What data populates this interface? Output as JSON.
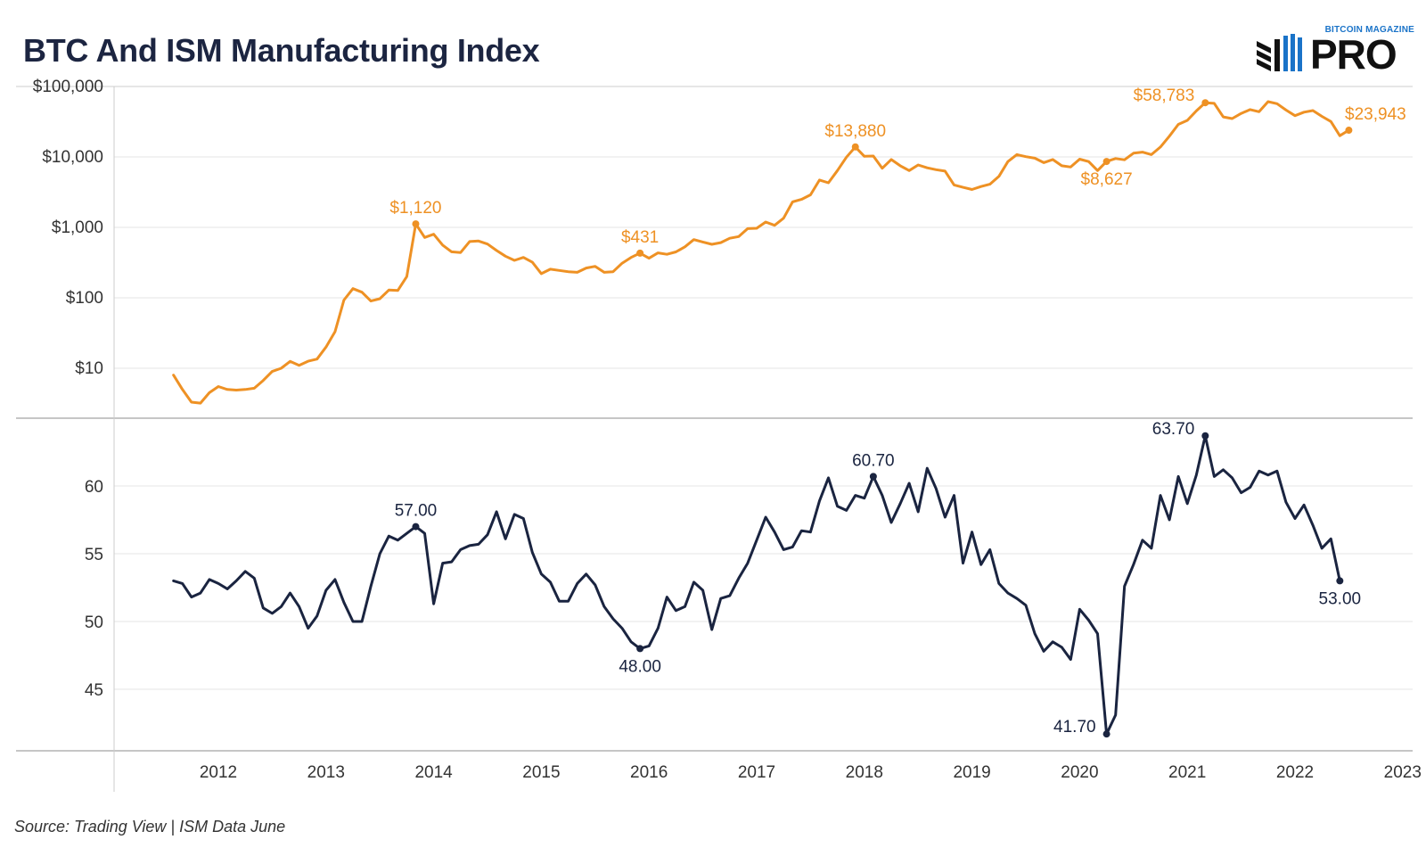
{
  "title": "BTC And ISM Manufacturing Index",
  "logo": {
    "top_text": "BITCOIN MAGAZINE",
    "main_text": "PRO"
  },
  "source": "Source: Trading View | ISM Data June",
  "colors": {
    "btc": "#ee9124",
    "ism": "#1a2440",
    "grid": "#e6e6e6",
    "axis": "#b3b3b3",
    "tick": "#333333"
  },
  "chart_data": [
    {
      "type": "line",
      "scale": "log",
      "series": [
        {
          "x": [
            "2011-08",
            "2011-09",
            "2011-10",
            "2011-11",
            "2011-12",
            "2012-01",
            "2012-02",
            "2012-03",
            "2012-04",
            "2012-05",
            "2012-06",
            "2012-07",
            "2012-08",
            "2012-09",
            "2012-10",
            "2012-11",
            "2012-12",
            "2013-01",
            "2013-02",
            "2013-03",
            "2013-04",
            "2013-05",
            "2013-06",
            "2013-07",
            "2013-08",
            "2013-09",
            "2013-10",
            "2013-11",
            "2013-12",
            "2014-01",
            "2014-02",
            "2014-03",
            "2014-04",
            "2014-05",
            "2014-06",
            "2014-07",
            "2014-08",
            "2014-09",
            "2014-10",
            "2014-11",
            "2014-12",
            "2015-01",
            "2015-02",
            "2015-03",
            "2015-04",
            "2015-05",
            "2015-06",
            "2015-07",
            "2015-08",
            "2015-09",
            "2015-10",
            "2015-11",
            "2015-12",
            "2016-01",
            "2016-02",
            "2016-03",
            "2016-04",
            "2016-05",
            "2016-06",
            "2016-07",
            "2016-08",
            "2016-09",
            "2016-10",
            "2016-11",
            "2016-12",
            "2017-01",
            "2017-02",
            "2017-03",
            "2017-04",
            "2017-05",
            "2017-06",
            "2017-07",
            "2017-08",
            "2017-09",
            "2017-10",
            "2017-11",
            "2017-12",
            "2018-01",
            "2018-02",
            "2018-03",
            "2018-04",
            "2018-05",
            "2018-06",
            "2018-07",
            "2018-08",
            "2018-09",
            "2018-10",
            "2018-11",
            "2018-12",
            "2019-01",
            "2019-02",
            "2019-03",
            "2019-04",
            "2019-05",
            "2019-06",
            "2019-07",
            "2019-08",
            "2019-09",
            "2019-10",
            "2019-11",
            "2019-12",
            "2020-01",
            "2020-02",
            "2020-03",
            "2020-04",
            "2020-05",
            "2020-06",
            "2020-07",
            "2020-08",
            "2020-09",
            "2020-10",
            "2020-11",
            "2020-12",
            "2021-01",
            "2021-02",
            "2021-03",
            "2021-04",
            "2021-05",
            "2021-06",
            "2021-07",
            "2021-08",
            "2021-09",
            "2021-10",
            "2021-11",
            "2021-12",
            "2022-01",
            "2022-02",
            "2022-03",
            "2022-04",
            "2022-05",
            "2022-06",
            "2022-07"
          ],
          "values": [
            8,
            5,
            3.3,
            3.2,
            4.5,
            5.5,
            5,
            4.9,
            5,
            5.2,
            6.7,
            9,
            10,
            12.5,
            11,
            12.6,
            13.5,
            20,
            33,
            93,
            135,
            120,
            90,
            97,
            129,
            127,
            200,
            1120,
            720,
            800,
            560,
            450,
            440,
            630,
            640,
            580,
            470,
            390,
            340,
            375,
            320,
            220,
            255,
            245,
            235,
            230,
            265,
            280,
            230,
            235,
            310,
            375,
            431,
            365,
            435,
            415,
            448,
            530,
            670,
            620,
            575,
            608,
            700,
            740,
            960,
            970,
            1190,
            1070,
            1350,
            2300,
            2500,
            2900,
            4700,
            4300,
            6400,
            9900,
            13880,
            10200,
            10300,
            6900,
            9200,
            7500,
            6400,
            7700,
            7000,
            6600,
            6300,
            4000,
            3700,
            3450,
            3800,
            4100,
            5300,
            8600,
            10800,
            10100,
            9600,
            8300,
            9200,
            7500,
            7200,
            9300,
            8600,
            6400,
            8627,
            9500,
            9100,
            11300,
            11700,
            10800,
            13800,
            19700,
            29000,
            33000,
            45000,
            58783,
            57700,
            37000,
            35000,
            41500,
            47000,
            43800,
            61000,
            57000,
            46300,
            38500,
            43200,
            45500,
            37700,
            31800,
            20000,
            23943
          ]
        }
      ],
      "y_ticks": [
        10,
        100,
        1000,
        10000,
        100000
      ],
      "y_tick_labels": [
        "$10",
        "$100",
        "$1,000",
        "$10,000",
        "$100,000"
      ],
      "x_labels": [
        "2012",
        "2013",
        "2014",
        "2015",
        "2016",
        "2017",
        "2018",
        "2019",
        "2020",
        "2021",
        "2022",
        "2023"
      ],
      "annotations": [
        {
          "x": "2013-11",
          "value": 1120,
          "label": "$1,120",
          "position": "above"
        },
        {
          "x": "2015-12",
          "value": 431,
          "label": "$431",
          "position": "above"
        },
        {
          "x": "2017-12",
          "value": 13880,
          "label": "$13,880",
          "position": "above"
        },
        {
          "x": "2020-04",
          "value": 8627,
          "label": "$8,627",
          "position": "below"
        },
        {
          "x": "2021-03",
          "value": 58783,
          "label": "$58,783",
          "position": "left"
        },
        {
          "x": "2022-07",
          "value": 23943,
          "label": "$23,943",
          "position": "above-right"
        }
      ]
    },
    {
      "type": "line",
      "series": [
        {
          "x": [
            "2011-08",
            "2011-09",
            "2011-10",
            "2011-11",
            "2011-12",
            "2012-01",
            "2012-02",
            "2012-03",
            "2012-04",
            "2012-05",
            "2012-06",
            "2012-07",
            "2012-08",
            "2012-09",
            "2012-10",
            "2012-11",
            "2012-12",
            "2013-01",
            "2013-02",
            "2013-03",
            "2013-04",
            "2013-05",
            "2013-06",
            "2013-07",
            "2013-08",
            "2013-09",
            "2013-10",
            "2013-11",
            "2013-12",
            "2014-01",
            "2014-02",
            "2014-03",
            "2014-04",
            "2014-05",
            "2014-06",
            "2014-07",
            "2014-08",
            "2014-09",
            "2014-10",
            "2014-11",
            "2014-12",
            "2015-01",
            "2015-02",
            "2015-03",
            "2015-04",
            "2015-05",
            "2015-06",
            "2015-07",
            "2015-08",
            "2015-09",
            "2015-10",
            "2015-11",
            "2015-12",
            "2016-01",
            "2016-02",
            "2016-03",
            "2016-04",
            "2016-05",
            "2016-06",
            "2016-07",
            "2016-08",
            "2016-09",
            "2016-10",
            "2016-11",
            "2016-12",
            "2017-01",
            "2017-02",
            "2017-03",
            "2017-04",
            "2017-05",
            "2017-06",
            "2017-07",
            "2017-08",
            "2017-09",
            "2017-10",
            "2017-11",
            "2017-12",
            "2018-01",
            "2018-02",
            "2018-03",
            "2018-04",
            "2018-05",
            "2018-06",
            "2018-07",
            "2018-08",
            "2018-09",
            "2018-10",
            "2018-11",
            "2018-12",
            "2019-01",
            "2019-02",
            "2019-03",
            "2019-04",
            "2019-05",
            "2019-06",
            "2019-07",
            "2019-08",
            "2019-09",
            "2019-10",
            "2019-11",
            "2019-12",
            "2020-01",
            "2020-02",
            "2020-03",
            "2020-04",
            "2020-05",
            "2020-06",
            "2020-07",
            "2020-08",
            "2020-09",
            "2020-10",
            "2020-11",
            "2020-12",
            "2021-01",
            "2021-02",
            "2021-03",
            "2021-04",
            "2021-05",
            "2021-06",
            "2021-07",
            "2021-08",
            "2021-09",
            "2021-10",
            "2021-11",
            "2021-12",
            "2022-01",
            "2022-02",
            "2022-03",
            "2022-04",
            "2022-05",
            "2022-06"
          ],
          "values": [
            53,
            52.8,
            51.8,
            52.1,
            53.1,
            52.8,
            52.4,
            53,
            53.7,
            53.2,
            51,
            50.6,
            51.1,
            52.1,
            51.1,
            49.5,
            50.4,
            52.3,
            53.1,
            51.4,
            50,
            50,
            52.6,
            55,
            56.3,
            56,
            56.5,
            57,
            56.5,
            51.3,
            54.3,
            54.4,
            55.3,
            55.6,
            55.7,
            56.4,
            58.1,
            56.1,
            57.9,
            57.6,
            55.1,
            53.5,
            52.9,
            51.5,
            51.5,
            52.8,
            53.5,
            52.7,
            51.1,
            50.2,
            49.5,
            48.5,
            48,
            48.2,
            49.5,
            51.8,
            50.8,
            51.1,
            52.9,
            52.3,
            49.4,
            51.7,
            51.9,
            53.2,
            54.3,
            56,
            57.7,
            56.6,
            55.3,
            55.5,
            56.7,
            56.6,
            58.9,
            60.6,
            58.5,
            58.2,
            59.3,
            59.1,
            60.7,
            59.3,
            57.3,
            58.7,
            60.2,
            58.1,
            61.3,
            59.8,
            57.7,
            59.3,
            54.3,
            56.6,
            54.2,
            55.3,
            52.8,
            52.1,
            51.7,
            51.2,
            49.1,
            47.8,
            48.5,
            48.1,
            47.2,
            50.9,
            50.1,
            49.1,
            41.7,
            43.1,
            52.6,
            54.2,
            56,
            55.4,
            59.3,
            57.5,
            60.7,
            58.7,
            60.8,
            63.7,
            60.7,
            61.2,
            60.6,
            59.5,
            59.9,
            61.1,
            60.8,
            61.1,
            58.8,
            57.6,
            58.6,
            57.1,
            55.4,
            56.1,
            53
          ]
        }
      ],
      "y_ticks": [
        45,
        50,
        55,
        60
      ],
      "y_tick_labels": [
        "45",
        "50",
        "55",
        "60"
      ],
      "y_range": [
        40.5,
        64.7
      ],
      "annotations": [
        {
          "x": "2013-11",
          "value": 57.0,
          "label": "57.00",
          "position": "above"
        },
        {
          "x": "2015-12",
          "value": 48.0,
          "label": "48.00",
          "position": "below"
        },
        {
          "x": "2018-02",
          "value": 60.7,
          "label": "60.70",
          "position": "above"
        },
        {
          "x": "2020-04",
          "value": 41.7,
          "label": "41.70",
          "position": "left"
        },
        {
          "x": "2021-03",
          "value": 63.7,
          "label": "63.70",
          "position": "left"
        },
        {
          "x": "2022-06",
          "value": 53.0,
          "label": "53.00",
          "position": "below"
        }
      ]
    }
  ]
}
